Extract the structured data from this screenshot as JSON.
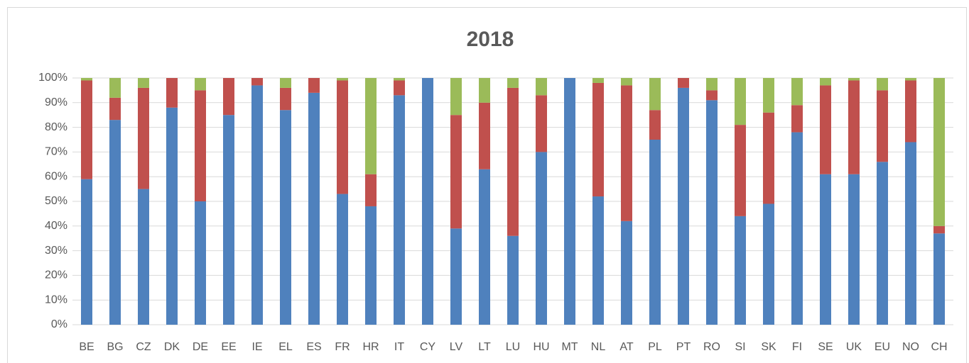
{
  "chart_data": {
    "type": "stacked_bar",
    "title": "2018",
    "categories": [
      "BE",
      "BG",
      "CZ",
      "DK",
      "DE",
      "EE",
      "IE",
      "EL",
      "ES",
      "FR",
      "HR",
      "IT",
      "CY",
      "LV",
      "LT",
      "LU",
      "HU",
      "MT",
      "NL",
      "AT",
      "PL",
      "PT",
      "RO",
      "SI",
      "SK",
      "FI",
      "SE",
      "UK",
      "EU",
      "NO",
      "CH"
    ],
    "series": [
      {
        "color": "#4f81bd",
        "values": [
          59,
          83,
          55,
          88,
          50,
          85,
          97,
          87,
          94,
          53,
          48,
          93,
          100,
          39,
          63,
          36,
          70,
          100,
          52,
          42,
          75,
          96,
          91,
          44,
          49,
          78,
          61,
          61,
          66,
          74,
          37
        ]
      },
      {
        "color": "#c0504d",
        "values": [
          40,
          9,
          41,
          12,
          45,
          15,
          3,
          9,
          6,
          46,
          13,
          6,
          0,
          46,
          27,
          60,
          23,
          0,
          46,
          55,
          12,
          4,
          4,
          37,
          37,
          11,
          36,
          38,
          29,
          25,
          3
        ]
      },
      {
        "color": "#9bbb59",
        "values": [
          1,
          8,
          4,
          0,
          5,
          0,
          0,
          4,
          0,
          1,
          39,
          1,
          0,
          15,
          10,
          4,
          7,
          0,
          2,
          3,
          13,
          0,
          5,
          19,
          14,
          11,
          3,
          1,
          5,
          1,
          60
        ]
      }
    ],
    "ylim": [
      0,
      100
    ],
    "yticks": [
      {
        "value": 0,
        "label": "0%"
      },
      {
        "value": 10,
        "label": "10%"
      },
      {
        "value": 20,
        "label": "20%"
      },
      {
        "value": 30,
        "label": "30%"
      },
      {
        "value": 40,
        "label": "40%"
      },
      {
        "value": 50,
        "label": "50%"
      },
      {
        "value": 60,
        "label": "60%"
      },
      {
        "value": 70,
        "label": "70%"
      },
      {
        "value": 80,
        "label": "80%"
      },
      {
        "value": 90,
        "label": "90%"
      },
      {
        "value": 100,
        "label": "100%"
      }
    ],
    "grid": true
  }
}
